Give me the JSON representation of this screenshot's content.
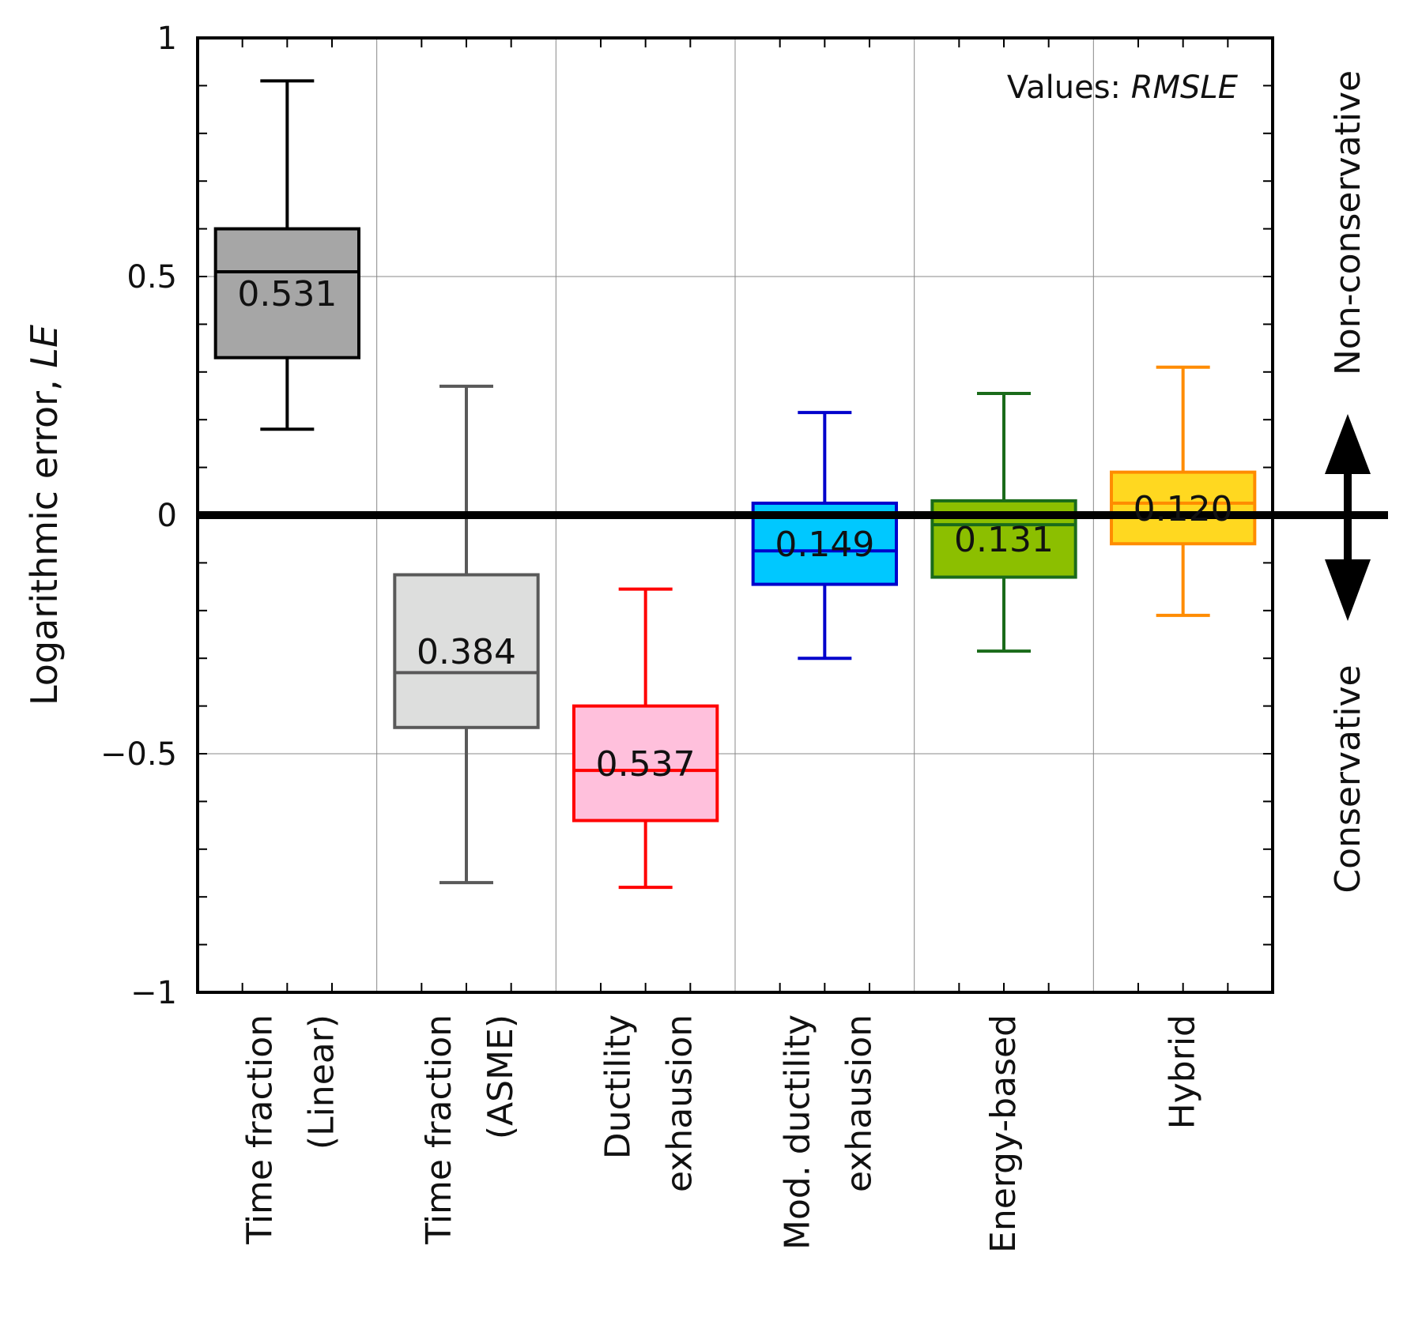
{
  "chart_data": {
    "type": "boxplot",
    "ylabel": "Logarithmic error, ",
    "ylabel_italic": "LE",
    "ylim": [
      -1,
      1
    ],
    "yticks": [
      {
        "value": 1,
        "label": "1"
      },
      {
        "value": 0.5,
        "label": "0.5"
      },
      {
        "value": 0,
        "label": "0"
      },
      {
        "value": -0.5,
        "label": "−0.5"
      },
      {
        "value": -1,
        "label": "−1"
      }
    ],
    "annotation_prefix": "Values: ",
    "annotation_italic": "RMSLE",
    "reference_line": 0,
    "side_labels": {
      "upper": "Non-conservative",
      "lower": "Conservative"
    },
    "categories": [
      {
        "label_lines": [
          "Time fraction",
          "(Linear)"
        ],
        "whisker_low": 0.18,
        "q1": 0.33,
        "median": 0.51,
        "q3": 0.6,
        "whisker_high": 0.91,
        "value_label": "0.531",
        "edge": "#000000",
        "fill": "#a6a6a6"
      },
      {
        "label_lines": [
          "Time fraction",
          "(ASME)"
        ],
        "whisker_low": -0.77,
        "q1": -0.445,
        "median": -0.33,
        "q3": -0.125,
        "whisker_high": 0.27,
        "value_label": "0.384",
        "edge": "#595959",
        "fill": "#dddedd"
      },
      {
        "label_lines": [
          "Ductility",
          "exhausion"
        ],
        "whisker_low": -0.78,
        "q1": -0.64,
        "median": -0.535,
        "q3": -0.4,
        "whisker_high": -0.155,
        "value_label": "0.537",
        "edge": "#ff0000",
        "fill": "#ffc0dc"
      },
      {
        "label_lines": [
          "Mod. ductility",
          "exhausion"
        ],
        "whisker_low": -0.3,
        "q1": -0.145,
        "median": -0.075,
        "q3": 0.025,
        "whisker_high": 0.215,
        "value_label": "0.149",
        "edge": "#0000cc",
        "fill": "#00c8ff"
      },
      {
        "label_lines": [
          "Energy-based"
        ],
        "whisker_low": -0.285,
        "q1": -0.13,
        "median": -0.02,
        "q3": 0.03,
        "whisker_high": 0.255,
        "value_label": "0.131",
        "edge": "#1a6b1a",
        "fill": "#8cbf00"
      },
      {
        "label_lines": [
          "Hybrid"
        ],
        "whisker_low": -0.21,
        "q1": -0.06,
        "median": 0.025,
        "q3": 0.09,
        "whisker_high": 0.31,
        "value_label": "0.120",
        "edge": "#ff8c00",
        "fill": "#ffd820"
      }
    ]
  }
}
